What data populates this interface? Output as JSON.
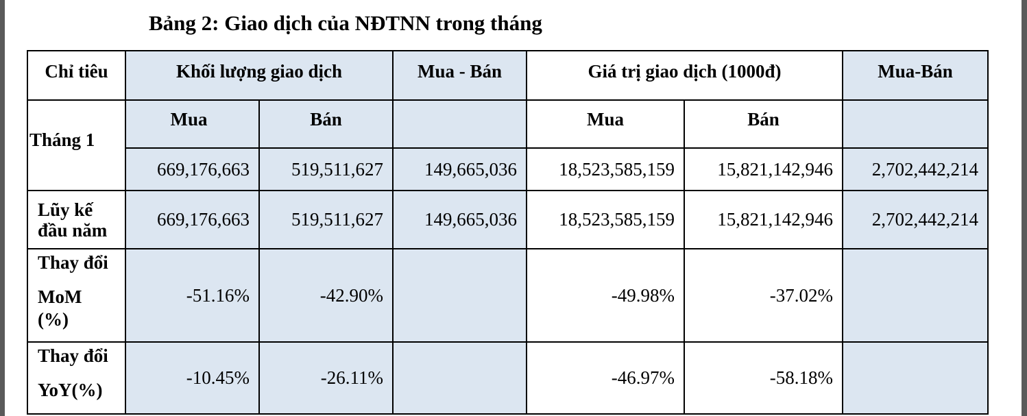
{
  "title": "Bảng 2: Giao dịch của NĐTNN trong tháng",
  "header": {
    "chi_tieu": "Chỉ tiêu",
    "khoi_luong": "Khối lượng giao dịch",
    "mua_ban_1": "Mua - Bán",
    "gia_tri": "Giá trị giao dịch (1000đ)",
    "mua_ban_2": "Mua-Bán",
    "mua": "Mua",
    "ban": "Bán"
  },
  "rows": [
    {
      "label": "Tháng 1",
      "kl_mua": "669,176,663",
      "kl_ban": "519,511,627",
      "kl_net": "149,665,036",
      "gt_mua": "18,523,585,159",
      "gt_ban": "15,821,142,946",
      "gt_net": "2,702,442,214"
    },
    {
      "label_line1": "Lũy kế",
      "label_line2": "đầu năm",
      "kl_mua": "669,176,663",
      "kl_ban": "519,511,627",
      "kl_net": "149,665,036",
      "gt_mua": "18,523,585,159",
      "gt_ban": "15,821,142,946",
      "gt_net": "2,702,442,214"
    },
    {
      "label_line1": "Thay đổi",
      "label_line2": "MoM",
      "label_line3": "(%)",
      "kl_mua": "-51.16%",
      "kl_ban": "-42.90%",
      "gt_mua": "-49.98%",
      "gt_ban": "-37.02%"
    },
    {
      "label_line1": "Thay đổi",
      "label_line2": "YoY(%)",
      "kl_mua": "-10.45%",
      "kl_ban": "-26.11%",
      "gt_mua": "-46.97%",
      "gt_ban": "-58.18%"
    }
  ],
  "colors": {
    "cell_blue": "#dce6f1",
    "border": "#000000",
    "page_edge": "#5a5a5a"
  }
}
